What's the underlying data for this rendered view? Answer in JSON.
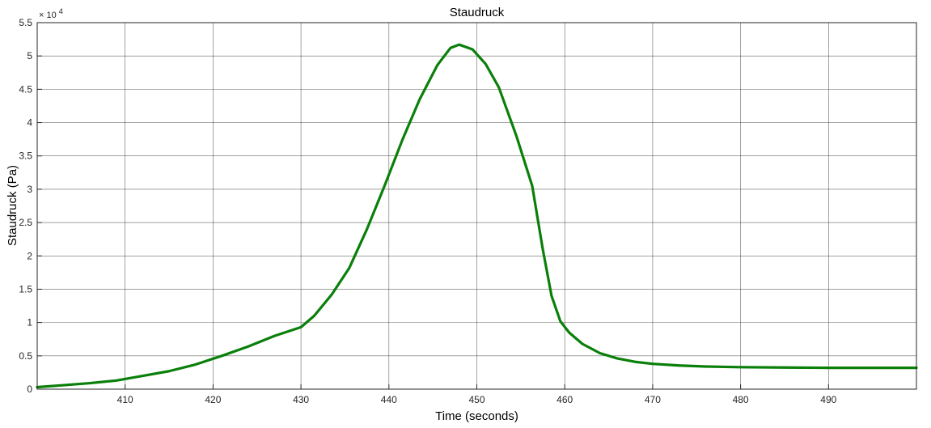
{
  "chart_data": {
    "type": "line",
    "title": "Staudruck",
    "xlabel": "Time (seconds)",
    "ylabel": "Staudruck (Pa)",
    "y_multiplier_base": "× 10",
    "y_multiplier_exp": "4",
    "xlim": [
      400,
      500
    ],
    "ylim": [
      0,
      55000
    ],
    "xticks": [
      410,
      420,
      430,
      440,
      450,
      460,
      470,
      480,
      490
    ],
    "xtick_labels": [
      "410",
      "420",
      "430",
      "440",
      "450",
      "460",
      "470",
      "480",
      "490"
    ],
    "yticks": [
      0,
      5000,
      10000,
      15000,
      20000,
      25000,
      30000,
      35000,
      40000,
      45000,
      50000,
      55000
    ],
    "ytick_labels": [
      "0",
      "0.5",
      "1",
      "1.5",
      "2",
      "2.5",
      "3",
      "3.5",
      "4",
      "4.5",
      "5",
      "5.5"
    ],
    "grid": true,
    "colors": {
      "line": "#0a7f0a",
      "grid": "#262626",
      "axes": "#262626"
    },
    "series": [
      {
        "x": [
          400,
          403,
          406,
          409,
          412,
          415,
          418,
          421,
          424,
          427,
          430,
          431.5,
          433.5,
          435.5,
          437.5,
          439.5,
          441.5,
          443.5,
          445.5,
          447,
          448,
          449.5,
          451,
          452.5,
          454.5,
          456.3,
          457.5,
          458.5,
          459.5,
          460.5,
          462,
          464,
          466,
          468,
          470,
          473,
          476,
          480,
          485,
          490,
          495,
          500
        ],
        "y": [
          300,
          600,
          900,
          1300,
          2000,
          2700,
          3700,
          5000,
          6400,
          8000,
          9300,
          11000,
          14200,
          18200,
          24000,
          30500,
          37300,
          43500,
          48600,
          51200,
          51700,
          51000,
          48800,
          45300,
          38000,
          30500,
          21000,
          14000,
          10200,
          8500,
          6800,
          5400,
          4600,
          4100,
          3800,
          3550,
          3400,
          3300,
          3250,
          3200,
          3200,
          3200
        ]
      }
    ]
  }
}
